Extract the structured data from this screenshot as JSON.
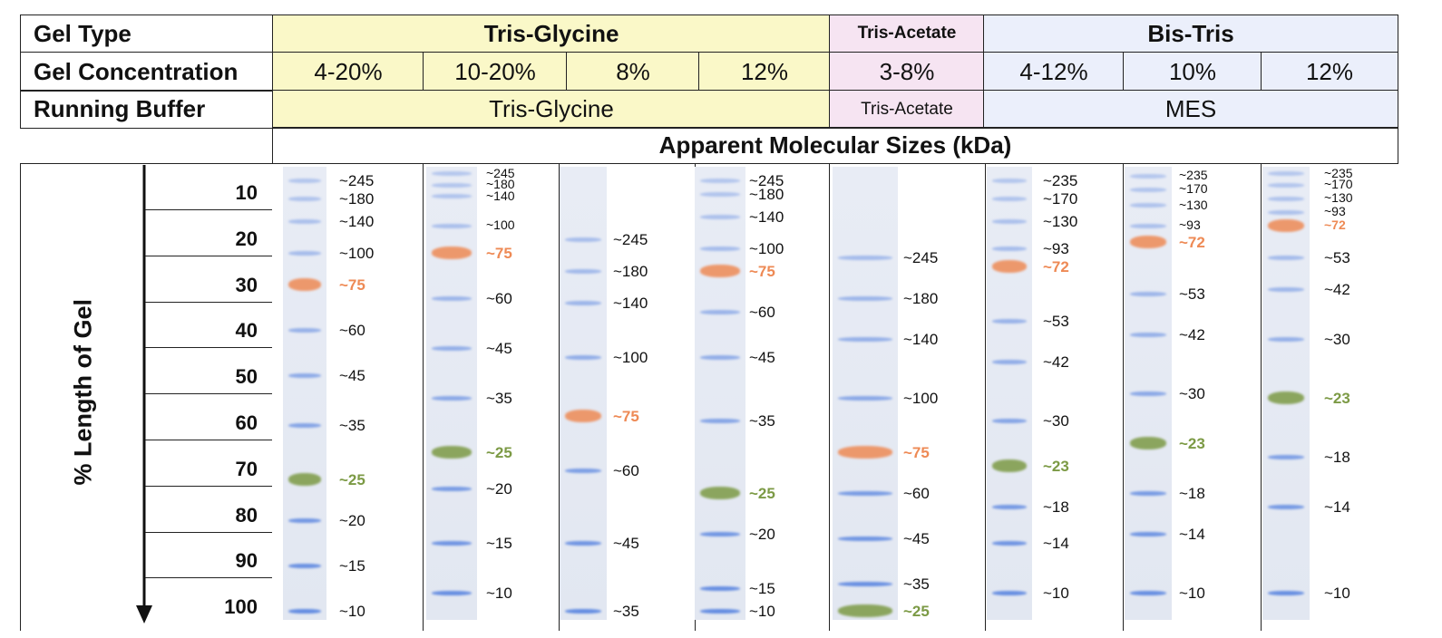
{
  "table": {
    "row_labels": {
      "gel_type": "Gel Type",
      "gel_concentration": "Gel Concentration",
      "running_buffer": "Running Buffer"
    },
    "gel_types": {
      "tris_glycine": "Tris-Glycine",
      "tris_acetate": "Tris-Acetate",
      "bis_tris": "Bis-Tris"
    },
    "concentrations": [
      "4-20%",
      "10-20%",
      "8%",
      "12%",
      "3-8%",
      "4-12%",
      "10%",
      "12%"
    ],
    "buffers": {
      "tris_glycine": "Tris-Glycine",
      "tris_acetate": "Tris-Acetate",
      "mes": "MES"
    },
    "sizes_header": "Apparent Molecular Sizes (kDa)",
    "colors": {
      "tris_glycine": "#faf8c8",
      "tris_acetate": "#f6e4f2",
      "bis_tris": "#ebeffb"
    }
  },
  "axis": {
    "label": "% Length of Gel",
    "ticks": [
      "10",
      "20",
      "30",
      "40",
      "50",
      "60",
      "70",
      "80",
      "90",
      "100"
    ]
  },
  "band_colors": {
    "blue": "#5b86e0",
    "orange": "#ee8a55",
    "green": "#7c9a45"
  },
  "lanes": [
    {
      "name": "4-20% Tris-Glycine",
      "bands": [
        {
          "label": "~245",
          "pos": 3,
          "color": "blue"
        },
        {
          "label": "~180",
          "pos": 7,
          "color": "blue"
        },
        {
          "label": "~140",
          "pos": 12,
          "color": "blue"
        },
        {
          "label": "~100",
          "pos": 19,
          "color": "blue"
        },
        {
          "label": "~75",
          "pos": 26,
          "color": "orange"
        },
        {
          "label": "~60",
          "pos": 36,
          "color": "blue"
        },
        {
          "label": "~45",
          "pos": 46,
          "color": "blue"
        },
        {
          "label": "~35",
          "pos": 57,
          "color": "blue"
        },
        {
          "label": "~25",
          "pos": 69,
          "color": "green"
        },
        {
          "label": "~20",
          "pos": 78,
          "color": "blue"
        },
        {
          "label": "~15",
          "pos": 88,
          "color": "blue"
        },
        {
          "label": "~10",
          "pos": 98,
          "color": "blue"
        }
      ]
    },
    {
      "name": "10-20% Tris-Glycine",
      "bands": [
        {
          "label": "~245",
          "pos": 1.5,
          "color": "blue"
        },
        {
          "label": "~180",
          "pos": 4,
          "color": "blue"
        },
        {
          "label": "~140",
          "pos": 6.5,
          "color": "blue"
        },
        {
          "label": "~100",
          "pos": 13,
          "color": "blue"
        },
        {
          "label": "~75",
          "pos": 19,
          "color": "orange"
        },
        {
          "label": "~60",
          "pos": 29,
          "color": "blue"
        },
        {
          "label": "~45",
          "pos": 40,
          "color": "blue"
        },
        {
          "label": "~35",
          "pos": 51,
          "color": "blue"
        },
        {
          "label": "~25",
          "pos": 63,
          "color": "green"
        },
        {
          "label": "~20",
          "pos": 71,
          "color": "blue"
        },
        {
          "label": "~15",
          "pos": 83,
          "color": "blue"
        },
        {
          "label": "~10",
          "pos": 94,
          "color": "blue"
        }
      ]
    },
    {
      "name": "8% Tris-Glycine",
      "bands": [
        {
          "label": "~245",
          "pos": 16,
          "color": "blue"
        },
        {
          "label": "~180",
          "pos": 23,
          "color": "blue"
        },
        {
          "label": "~140",
          "pos": 30,
          "color": "blue"
        },
        {
          "label": "~100",
          "pos": 42,
          "color": "blue"
        },
        {
          "label": "~75",
          "pos": 55,
          "color": "orange"
        },
        {
          "label": "~60",
          "pos": 67,
          "color": "blue"
        },
        {
          "label": "~45",
          "pos": 83,
          "color": "blue"
        },
        {
          "label": "~35",
          "pos": 98,
          "color": "blue"
        }
      ]
    },
    {
      "name": "12% Tris-Glycine",
      "bands": [
        {
          "label": "~245",
          "pos": 3,
          "color": "blue"
        },
        {
          "label": "~180",
          "pos": 6,
          "color": "blue"
        },
        {
          "label": "~140",
          "pos": 11,
          "color": "blue"
        },
        {
          "label": "~100",
          "pos": 18,
          "color": "blue"
        },
        {
          "label": "~75",
          "pos": 23,
          "color": "orange"
        },
        {
          "label": "~60",
          "pos": 32,
          "color": "blue"
        },
        {
          "label": "~45",
          "pos": 42,
          "color": "blue"
        },
        {
          "label": "~35",
          "pos": 56,
          "color": "blue"
        },
        {
          "label": "~25",
          "pos": 72,
          "color": "green"
        },
        {
          "label": "~20",
          "pos": 81,
          "color": "blue"
        },
        {
          "label": "~15",
          "pos": 93,
          "color": "blue"
        },
        {
          "label": "~10",
          "pos": 98,
          "color": "blue"
        }
      ]
    },
    {
      "name": "3-8% Tris-Acetate",
      "bands": [
        {
          "label": "~245",
          "pos": 20,
          "color": "blue"
        },
        {
          "label": "~180",
          "pos": 29,
          "color": "blue"
        },
        {
          "label": "~140",
          "pos": 38,
          "color": "blue"
        },
        {
          "label": "~100",
          "pos": 51,
          "color": "blue"
        },
        {
          "label": "~75",
          "pos": 63,
          "color": "orange"
        },
        {
          "label": "~60",
          "pos": 72,
          "color": "blue"
        },
        {
          "label": "~45",
          "pos": 82,
          "color": "blue"
        },
        {
          "label": "~35",
          "pos": 92,
          "color": "blue"
        },
        {
          "label": "~25",
          "pos": 98,
          "color": "green"
        }
      ]
    },
    {
      "name": "4-12% Bis-Tris",
      "bands": [
        {
          "label": "~235",
          "pos": 3,
          "color": "blue"
        },
        {
          "label": "~170",
          "pos": 7,
          "color": "blue"
        },
        {
          "label": "~130",
          "pos": 12,
          "color": "blue"
        },
        {
          "label": "~93",
          "pos": 18,
          "color": "blue"
        },
        {
          "label": "~72",
          "pos": 22,
          "color": "orange"
        },
        {
          "label": "~53",
          "pos": 34,
          "color": "blue"
        },
        {
          "label": "~42",
          "pos": 43,
          "color": "blue"
        },
        {
          "label": "~30",
          "pos": 56,
          "color": "blue"
        },
        {
          "label": "~23",
          "pos": 66,
          "color": "green"
        },
        {
          "label": "~18",
          "pos": 75,
          "color": "blue"
        },
        {
          "label": "~14",
          "pos": 83,
          "color": "blue"
        },
        {
          "label": "~10",
          "pos": 94,
          "color": "blue"
        }
      ]
    },
    {
      "name": "10% Bis-Tris",
      "bands": [
        {
          "label": "~235",
          "pos": 2,
          "color": "blue"
        },
        {
          "label": "~170",
          "pos": 5,
          "color": "blue"
        },
        {
          "label": "~130",
          "pos": 8.5,
          "color": "blue"
        },
        {
          "label": "~93",
          "pos": 13,
          "color": "blue"
        },
        {
          "label": "~72",
          "pos": 16.5,
          "color": "orange"
        },
        {
          "label": "~53",
          "pos": 28,
          "color": "blue"
        },
        {
          "label": "~42",
          "pos": 37,
          "color": "blue"
        },
        {
          "label": "~30",
          "pos": 50,
          "color": "blue"
        },
        {
          "label": "~23",
          "pos": 61,
          "color": "green"
        },
        {
          "label": "~18",
          "pos": 72,
          "color": "blue"
        },
        {
          "label": "~14",
          "pos": 81,
          "color": "blue"
        },
        {
          "label": "~10",
          "pos": 94,
          "color": "blue"
        }
      ]
    },
    {
      "name": "12% Bis-Tris",
      "bands": [
        {
          "label": "~235",
          "pos": 1.5,
          "color": "blue"
        },
        {
          "label": "~170",
          "pos": 4,
          "color": "blue"
        },
        {
          "label": "~130",
          "pos": 7,
          "color": "blue"
        },
        {
          "label": "~93",
          "pos": 10,
          "color": "blue"
        },
        {
          "label": "~72",
          "pos": 13,
          "color": "orange"
        },
        {
          "label": "~53",
          "pos": 20,
          "color": "blue"
        },
        {
          "label": "~42",
          "pos": 27,
          "color": "blue"
        },
        {
          "label": "~30",
          "pos": 38,
          "color": "blue"
        },
        {
          "label": "~23",
          "pos": 51,
          "color": "green"
        },
        {
          "label": "~18",
          "pos": 64,
          "color": "blue"
        },
        {
          "label": "~14",
          "pos": 75,
          "color": "blue"
        },
        {
          "label": "~10",
          "pos": 94,
          "color": "blue"
        }
      ]
    }
  ]
}
